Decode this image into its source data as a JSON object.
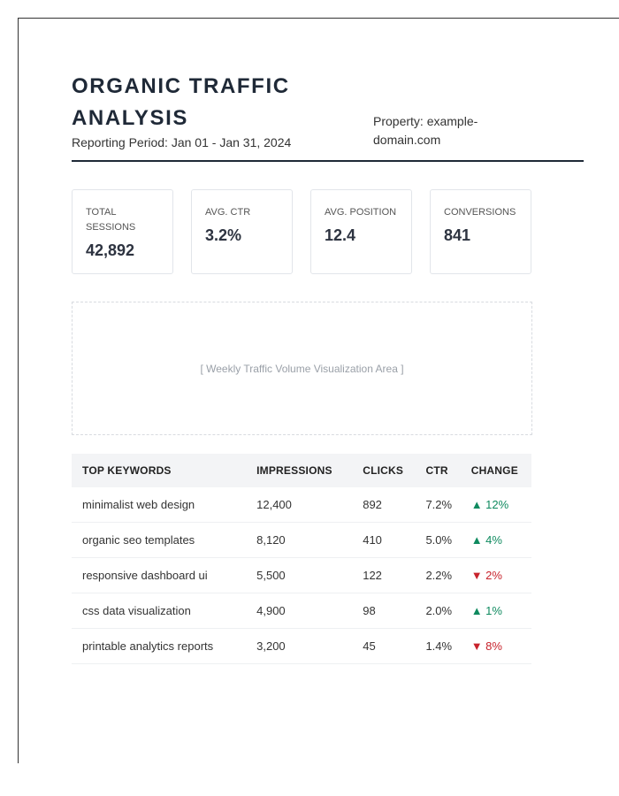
{
  "header": {
    "title": "ORGANIC TRAFFIC ANALYSIS",
    "period": "Reporting Period: Jan 01 - Jan 31, 2024",
    "property": "Property: example-domain.com"
  },
  "kpis": [
    {
      "label": "TOTAL SESSIONS",
      "value": "42,892"
    },
    {
      "label": "AVG. CTR",
      "value": "3.2%"
    },
    {
      "label": "AVG. POSITION",
      "value": "12.4"
    },
    {
      "label": "CONVERSIONS",
      "value": "841"
    }
  ],
  "placeholder": "[ Weekly Traffic Volume Visualization Area ]",
  "table": {
    "columns": [
      "TOP KEYWORDS",
      "IMPRESSIONS",
      "CLICKS",
      "CTR",
      "CHANGE"
    ],
    "rows": [
      [
        "minimalist web design",
        "12,400",
        "892",
        "7.2%",
        "▲ 12%"
      ],
      [
        "organic seo templates",
        "8,120",
        "410",
        "5.0%",
        "▲ 4%"
      ],
      [
        "responsive dashboard ui",
        "5,500",
        "122",
        "2.2%",
        "▼ 2%"
      ],
      [
        "css data visualization",
        "4,900",
        "98",
        "2.0%",
        "▲ 1%"
      ],
      [
        "printable analytics reports",
        "3,200",
        "45",
        "1.4%",
        "▼ 8%"
      ]
    ],
    "trend": [
      "up",
      "up",
      "down",
      "up",
      "down"
    ]
  }
}
